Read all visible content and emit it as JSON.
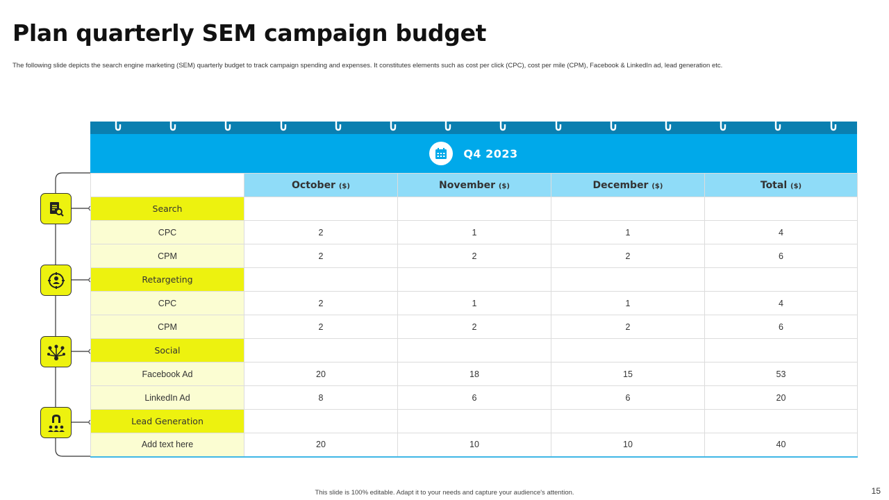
{
  "header": {
    "title": "Plan quarterly SEM campaign budget",
    "subtitle": "The following slide depicts the search engine marketing (SEM) quarterly budget to track campaign spending and expenses. It constitutes elements such as cost per click (CPC), cost per mile (CPM), Facebook & LinkedIn ad, lead generation etc."
  },
  "calendar": {
    "quarter_label": "Q4 2023",
    "icon": "calendar-icon"
  },
  "columns": [
    {
      "label": "October",
      "unit": "($)"
    },
    {
      "label": "November",
      "unit": "($)"
    },
    {
      "label": "December",
      "unit": "($)"
    },
    {
      "label": "Total",
      "unit": "($)"
    }
  ],
  "rows": [
    {
      "kind": "category",
      "label": "Search"
    },
    {
      "kind": "item",
      "label": "CPC",
      "values": [
        "2",
        "1",
        "1",
        "4"
      ]
    },
    {
      "kind": "item",
      "label": "CPM",
      "values": [
        "2",
        "2",
        "2",
        "6"
      ]
    },
    {
      "kind": "category",
      "label": "Retargeting"
    },
    {
      "kind": "item",
      "label": "CPC",
      "values": [
        "2",
        "1",
        "1",
        "4"
      ]
    },
    {
      "kind": "item",
      "label": "CPM",
      "values": [
        "2",
        "2",
        "2",
        "6"
      ]
    },
    {
      "kind": "category",
      "label": "Social"
    },
    {
      "kind": "item",
      "label": "Facebook Ad",
      "values": [
        "20",
        "18",
        "15",
        "53"
      ]
    },
    {
      "kind": "item",
      "label": "LinkedIn Ad",
      "values": [
        "8",
        "6",
        "6",
        "20"
      ]
    },
    {
      "kind": "category",
      "label": "Lead Generation"
    },
    {
      "kind": "item",
      "label": "Add text here",
      "values": [
        "20",
        "10",
        "10",
        "40"
      ]
    }
  ],
  "category_icons": [
    "search-document-icon",
    "target-user-icon",
    "social-network-icon",
    "lead-magnet-icon"
  ],
  "colors": {
    "accent_blue": "#00a9ea",
    "dark_blue": "#0a7fb0",
    "light_blue": "#8fdcf8",
    "yellow": "#edf20f",
    "pale_yellow": "#fbfdd2"
  },
  "footer": {
    "note": "This slide is 100% editable. Adapt it to your needs and capture your audience's attention.",
    "page_number": "15"
  }
}
